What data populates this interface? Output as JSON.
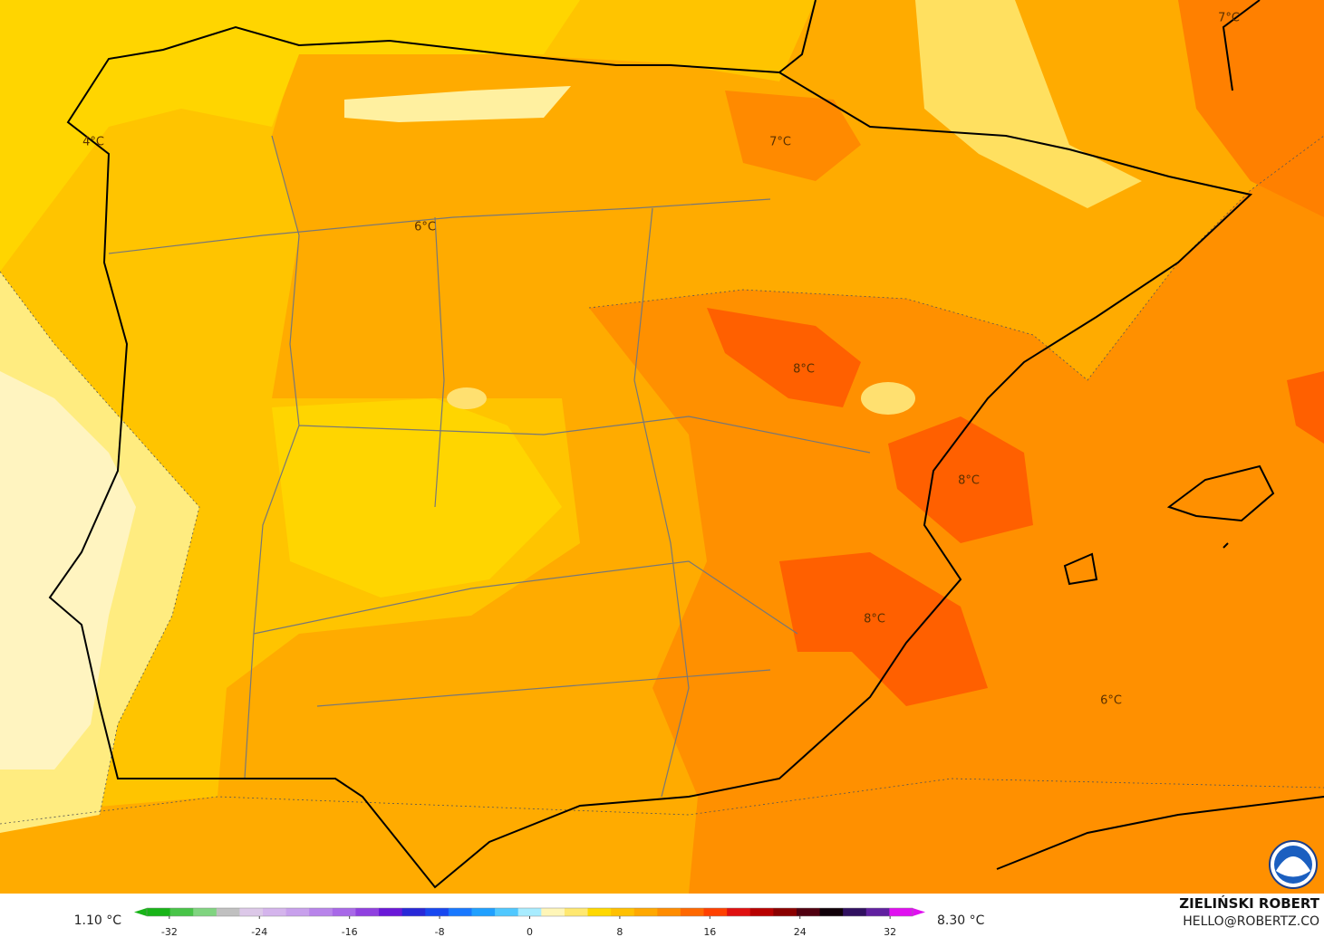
{
  "map": {
    "contour_labels": [
      "4°C",
      "7°C",
      "6°C",
      "8°C",
      "8°C",
      "8°C",
      "6°C",
      "7°C"
    ],
    "colorbar": {
      "min_label": "1.10 °C",
      "max_label": "8.30 °C",
      "lim": [
        -34,
        34
      ],
      "ticks": [
        -32,
        -24,
        -16,
        -8,
        0,
        8,
        16,
        24,
        32
      ],
      "colors": [
        "#18b418",
        "#48c448",
        "#80d480",
        "#c0c0c0",
        "#dcc8e8",
        "#d4b4ec",
        "#c8a0ec",
        "#b884ea",
        "#a868e8",
        "#9040e0",
        "#6a18d8",
        "#2828d8",
        "#1848f0",
        "#1878ff",
        "#20a0ff",
        "#50c8ff",
        "#a8ecff",
        "#fff6b8",
        "#ffe870",
        "#ffd800",
        "#ffc000",
        "#ffa800",
        "#ff8c00",
        "#ff6800",
        "#ff4000",
        "#e01010",
        "#b80000",
        "#8a0000",
        "#500010",
        "#100008",
        "#301060",
        "#6020a0",
        "#e010f0"
      ]
    },
    "credit": {
      "author": "ZIELIŃSKI ROBERT",
      "contact": "HELLO@ROBERTZ.CO"
    }
  }
}
